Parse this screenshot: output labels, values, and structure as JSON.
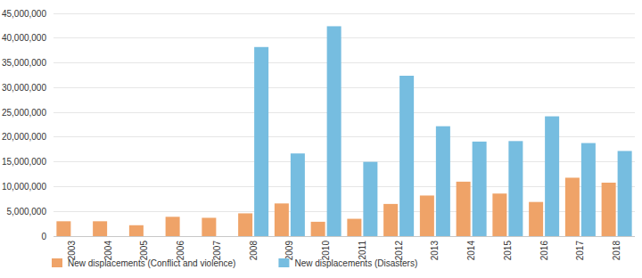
{
  "chart_data": {
    "type": "bar",
    "categories": [
      "2003",
      "2004",
      "2005",
      "2006",
      "2007",
      "2008",
      "2009",
      "2010",
      "2011",
      "2012",
      "2013",
      "2014",
      "2015",
      "2016",
      "2017",
      "2018"
    ],
    "series": [
      {
        "name": "New displacements (Conflict and violence)",
        "color": "#efa368",
        "values": [
          3000000,
          3000000,
          2200000,
          3900000,
          3700000,
          4600000,
          6600000,
          2900000,
          3500000,
          6500000,
          8200000,
          11000000,
          8600000,
          6900000,
          11800000,
          10800000
        ]
      },
      {
        "name": "New displacements (Disasters)",
        "color": "#76bde0",
        "values": [
          null,
          null,
          null,
          null,
          null,
          38200000,
          16700000,
          42400000,
          15000000,
          32400000,
          22200000,
          19100000,
          19200000,
          24200000,
          18800000,
          17200000
        ]
      }
    ],
    "ylim": [
      0,
      45000000
    ],
    "yticks": [
      0,
      {
        "value": 5000000,
        "label": "5,000,000"
      },
      {
        "value": 10000000,
        "label": "10,000,000"
      },
      {
        "value": 15000000,
        "label": "15,000,000"
      },
      {
        "value": 20000000,
        "label": "20,000,000"
      },
      {
        "value": 25000000,
        "label": "25,000,000"
      },
      {
        "value": 30000000,
        "label": "30,000,000"
      },
      {
        "value": 35000000,
        "label": "35,000,000"
      },
      {
        "value": 40000000,
        "label": "40,000,000"
      },
      {
        "value": 45000000,
        "label": "45,000,000"
      }
    ],
    "grid": true,
    "legend": "bottom"
  }
}
